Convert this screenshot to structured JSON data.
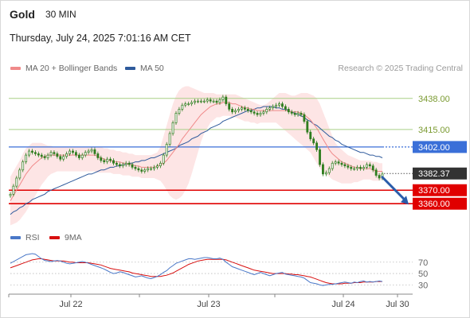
{
  "header": {
    "symbol": "Gold",
    "timeframe": "30 MIN",
    "datetime": "Thursday, July 24, 2025 7:01:16 AM CET"
  },
  "legend": {
    "ma20_label": "MA 20 + Bollinger Bands",
    "ma50_label": "MA 50",
    "rsi_label": "RSI",
    "ma9_label": "9MA",
    "credit": "Research © 2025 Trading Central"
  },
  "colors": {
    "ma20": "#f08a8a",
    "ma50": "#2e5a9c",
    "bollinger_fill": "#fde2e2",
    "candle": "#2f7d1f",
    "resistance_line": "#a9cf86",
    "pivot_line": "#3a6fd8",
    "support_line": "#e00000",
    "rsi": "#4a78c8",
    "rsi_ma": "#d81010",
    "forecast_arrow": "#2a5caa"
  },
  "chart_data": [
    {
      "type": "candlestick",
      "name": "price",
      "x_ticks": [
        "Jul 22",
        "Jul 23",
        "Jul 24",
        "Jul 30"
      ],
      "ylim": [
        3346,
        3452
      ],
      "levels": [
        {
          "label": "3438.00",
          "value": 3438,
          "kind": "resistance"
        },
        {
          "label": "3415.00",
          "value": 3415,
          "kind": "resistance"
        },
        {
          "label": "3402.00",
          "value": 3402,
          "kind": "pivot"
        },
        {
          "label": "3382.37",
          "value": 3382.37,
          "kind": "last-price"
        },
        {
          "label": "3370.00",
          "value": 3370,
          "kind": "support"
        },
        {
          "label": "3360.00",
          "value": 3360,
          "kind": "support"
        }
      ],
      "close": [
        3367,
        3373,
        3379,
        3385,
        3391,
        3396,
        3399,
        3398,
        3397,
        3396,
        3395,
        3394,
        3396,
        3398,
        3397,
        3395,
        3393,
        3395,
        3397,
        3399,
        3398,
        3396,
        3394,
        3396,
        3398,
        3399,
        3400,
        3397,
        3394,
        3392,
        3391,
        3393,
        3392,
        3390,
        3389,
        3388,
        3389,
        3390,
        3389,
        3387,
        3386,
        3385,
        3384,
        3385,
        3386,
        3386,
        3387,
        3388,
        3390,
        3396,
        3404,
        3412,
        3420,
        3427,
        3430,
        3433,
        3434,
        3434,
        3435,
        3436,
        3436,
        3436,
        3436,
        3437,
        3436,
        3436,
        3435,
        3437,
        3439,
        3434,
        3430,
        3428,
        3429,
        3430,
        3431,
        3430,
        3429,
        3428,
        3427,
        3426,
        3427,
        3428,
        3430,
        3431,
        3432,
        3433,
        3434,
        3432,
        3430,
        3428,
        3427,
        3426,
        3427,
        3426,
        3421,
        3413,
        3408,
        3405,
        3400,
        3389,
        3382,
        3383,
        3386,
        3390,
        3391,
        3390,
        3389,
        3388,
        3387,
        3386,
        3386,
        3387,
        3386,
        3387,
        3389,
        3388,
        3385,
        3381,
        3379,
        3382
      ],
      "ma20": [
        3362,
        3366,
        3370,
        3374,
        3378,
        3382,
        3385,
        3388,
        3390,
        3392,
        3394,
        3395,
        3396,
        3396,
        3396,
        3396,
        3396,
        3396,
        3396,
        3396,
        3396,
        3396,
        3396,
        3396,
        3396,
        3396,
        3396,
        3396,
        3395,
        3394,
        3393,
        3392,
        3392,
        3391,
        3391,
        3391,
        3390,
        3390,
        3389,
        3389,
        3388,
        3388,
        3387,
        3387,
        3387,
        3387,
        3387,
        3388,
        3389,
        3390,
        3392,
        3395,
        3398,
        3401,
        3404,
        3408,
        3411,
        3414,
        3417,
        3420,
        3423,
        3426,
        3428,
        3430,
        3432,
        3433,
        3434,
        3434,
        3435,
        3435,
        3435,
        3434,
        3434,
        3433,
        3432,
        3431,
        3431,
        3430,
        3430,
        3429,
        3429,
        3429,
        3429,
        3429,
        3429,
        3429,
        3429,
        3429,
        3429,
        3429,
        3428,
        3428,
        3428,
        3427,
        3426,
        3424,
        3422,
        3419,
        3416,
        3412,
        3408,
        3404,
        3400,
        3397,
        3395,
        3393,
        3391,
        3390,
        3389,
        3388,
        3387,
        3387,
        3386,
        3386,
        3386,
        3386,
        3385,
        3384,
        3384,
        3384
      ],
      "ma50": [
        3352,
        3354,
        3355,
        3357,
        3358,
        3360,
        3361,
        3363,
        3364,
        3365,
        3366,
        3367,
        3369,
        3370,
        3371,
        3372,
        3373,
        3374,
        3375,
        3376,
        3377,
        3378,
        3379,
        3380,
        3381,
        3382,
        3382,
        3383,
        3384,
        3385,
        3385,
        3386,
        3387,
        3387,
        3388,
        3388,
        3389,
        3389,
        3390,
        3390,
        3391,
        3391,
        3392,
        3392,
        3393,
        3394,
        3394,
        3395,
        3396,
        3397,
        3398,
        3399,
        3400,
        3401,
        3403,
        3404,
        3405,
        3406,
        3408,
        3409,
        3410,
        3412,
        3413,
        3414,
        3416,
        3417,
        3418,
        3419,
        3421,
        3422,
        3423,
        3424,
        3425,
        3426,
        3427,
        3428,
        3429,
        3429,
        3430,
        3431,
        3431,
        3432,
        3432,
        3432,
        3432,
        3431,
        3431,
        3430,
        3430,
        3429,
        3428,
        3427,
        3426,
        3425,
        3424,
        3422,
        3421,
        3419,
        3418,
        3416,
        3414,
        3412,
        3410,
        3409,
        3407,
        3406,
        3404,
        3403,
        3402,
        3401,
        3400,
        3399,
        3398,
        3398,
        3397,
        3396,
        3396,
        3395,
        3395,
        3394
      ],
      "bb_upper": [
        3380,
        3384,
        3388,
        3392,
        3397,
        3401,
        3403,
        3405,
        3405,
        3405,
        3405,
        3404,
        3403,
        3403,
        3402,
        3402,
        3402,
        3402,
        3402,
        3402,
        3402,
        3402,
        3402,
        3402,
        3402,
        3402,
        3402,
        3402,
        3402,
        3402,
        3401,
        3401,
        3400,
        3400,
        3399,
        3399,
        3398,
        3398,
        3397,
        3397,
        3396,
        3396,
        3396,
        3396,
        3396,
        3396,
        3397,
        3398,
        3402,
        3410,
        3418,
        3426,
        3434,
        3440,
        3444,
        3446,
        3447,
        3447,
        3446,
        3445,
        3444,
        3443,
        3442,
        3442,
        3442,
        3442,
        3441,
        3441,
        3441,
        3441,
        3441,
        3441,
        3441,
        3440,
        3439,
        3438,
        3437,
        3436,
        3435,
        3434,
        3433,
        3433,
        3434,
        3436,
        3438,
        3440,
        3442,
        3442,
        3442,
        3441,
        3440,
        3440,
        3441,
        3442,
        3442,
        3442,
        3441,
        3440,
        3438,
        3434,
        3428,
        3422,
        3416,
        3410,
        3405,
        3402,
        3400,
        3398,
        3396,
        3395,
        3394,
        3393,
        3392,
        3392,
        3392,
        3392,
        3391,
        3391,
        3390,
        3390
      ],
      "bb_lower": [
        3344,
        3345,
        3346,
        3348,
        3351,
        3354,
        3358,
        3362,
        3366,
        3370,
        3374,
        3377,
        3380,
        3382,
        3383,
        3384,
        3384,
        3384,
        3384,
        3384,
        3384,
        3384,
        3384,
        3384,
        3384,
        3384,
        3384,
        3384,
        3383,
        3383,
        3383,
        3383,
        3383,
        3382,
        3382,
        3382,
        3381,
        3381,
        3381,
        3380,
        3380,
        3380,
        3379,
        3379,
        3379,
        3379,
        3379,
        3378,
        3377,
        3374,
        3370,
        3366,
        3364,
        3363,
        3364,
        3366,
        3370,
        3375,
        3382,
        3390,
        3398,
        3406,
        3412,
        3416,
        3420,
        3422,
        3424,
        3424,
        3425,
        3425,
        3425,
        3424,
        3424,
        3423,
        3422,
        3421,
        3421,
        3420,
        3420,
        3419,
        3420,
        3420,
        3420,
        3420,
        3420,
        3420,
        3418,
        3416,
        3414,
        3412,
        3410,
        3408,
        3406,
        3404,
        3402,
        3400,
        3398,
        3394,
        3390,
        3386,
        3384,
        3382,
        3380,
        3378,
        3377,
        3376,
        3375,
        3375,
        3375,
        3375,
        3376,
        3376,
        3377,
        3378,
        3378,
        3378,
        3377,
        3377,
        3377,
        3378
      ],
      "forecast_arrow": {
        "from": 3382,
        "to": 3360
      }
    },
    {
      "type": "line",
      "name": "rsi-panel",
      "yticks": [
        70,
        50,
        30
      ],
      "ylim": [
        18,
        92
      ],
      "rsi": [
        68,
        71,
        74,
        77,
        80,
        83,
        84,
        85,
        84,
        80,
        76,
        73,
        72,
        71,
        72,
        73,
        72,
        70,
        68,
        67,
        68,
        69,
        70,
        71,
        70,
        68,
        66,
        64,
        62,
        60,
        58,
        55,
        52,
        50,
        51,
        53,
        52,
        50,
        48,
        46,
        44,
        45,
        46,
        44,
        42,
        41,
        43,
        45,
        48,
        52,
        55,
        60,
        64,
        68,
        70,
        72,
        74,
        76,
        76,
        75,
        76,
        77,
        78,
        78,
        77,
        76,
        76,
        77,
        75,
        70,
        66,
        62,
        60,
        58,
        56,
        54,
        52,
        50,
        48,
        50,
        52,
        50,
        48,
        46,
        48,
        50,
        51,
        52,
        49,
        48,
        47,
        46,
        45,
        44,
        42,
        38,
        34,
        33,
        32,
        30,
        29,
        30,
        31,
        31,
        32,
        33,
        34,
        35,
        34,
        33,
        35,
        34,
        36,
        37,
        35,
        36,
        35,
        36,
        37,
        36
      ],
      "rsi_ma": [
        60,
        62,
        64,
        66,
        68,
        70,
        72,
        74,
        75,
        76,
        76,
        75,
        74,
        73,
        72,
        72,
        72,
        72,
        71,
        70,
        70,
        69,
        69,
        69,
        69,
        69,
        68,
        67,
        66,
        65,
        63,
        61,
        59,
        58,
        57,
        56,
        55,
        54,
        53,
        51,
        50,
        49,
        48,
        47,
        46,
        45,
        45,
        45,
        45,
        46,
        47,
        49,
        51,
        54,
        57,
        60,
        63,
        66,
        68,
        70,
        72,
        73,
        74,
        75,
        75,
        75,
        75,
        75,
        75,
        74,
        72,
        70,
        68,
        66,
        64,
        62,
        60,
        58,
        56,
        55,
        54,
        53,
        52,
        51,
        50,
        50,
        50,
        50,
        50,
        49,
        49,
        48,
        48,
        47,
        46,
        45,
        44,
        42,
        40,
        38,
        36,
        34,
        33,
        32,
        32,
        32,
        32,
        33,
        33,
        33,
        34,
        34,
        34,
        35,
        35,
        35,
        35,
        36,
        36,
        36
      ]
    }
  ]
}
